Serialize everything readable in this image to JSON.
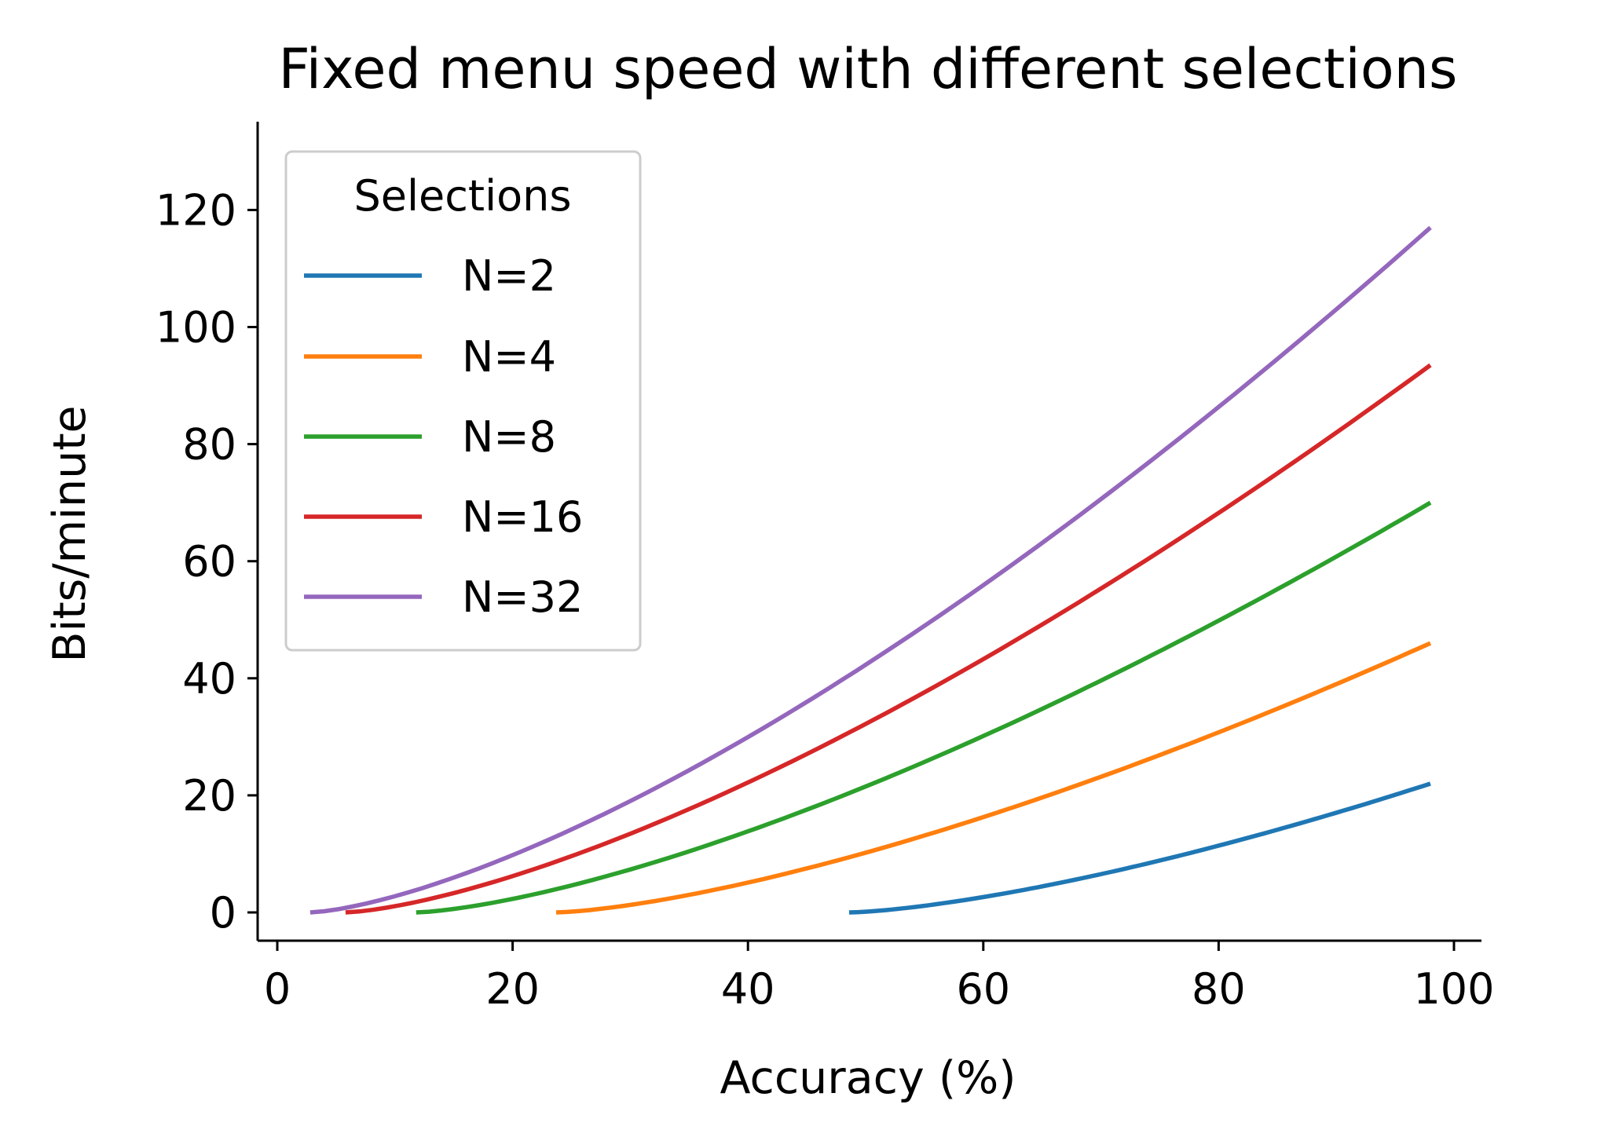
{
  "chart_data": {
    "type": "line",
    "title": "Fixed menu speed with different selections",
    "xlabel": "Accuracy (%)",
    "ylabel": "Bits/minute",
    "xlim": [
      -2,
      103
    ],
    "ylim": [
      -5,
      135
    ],
    "xticks": [
      0,
      20,
      40,
      60,
      80,
      100
    ],
    "yticks": [
      0,
      20,
      40,
      60,
      80,
      100,
      120
    ],
    "grid": false,
    "legend": {
      "title": "Selections",
      "placement": "top-left"
    },
    "series": [
      {
        "name": "N=2",
        "color": "#1f77b4",
        "x_start": 48.6,
        "x_end": 98,
        "y_end": 22
      },
      {
        "name": "N=4",
        "color": "#ff7f0e",
        "x_start": 23.7,
        "x_end": 98,
        "y_end": 46
      },
      {
        "name": "N=8",
        "color": "#2ca02c",
        "x_start": 11.8,
        "x_end": 98,
        "y_end": 70
      },
      {
        "name": "N=16",
        "color": "#d62728",
        "x_start": 5.8,
        "x_end": 98,
        "y_end": 93.5
      },
      {
        "name": "N=32",
        "color": "#9467bd",
        "x_start": 2.8,
        "x_end": 98,
        "y_end": 117
      }
    ]
  }
}
